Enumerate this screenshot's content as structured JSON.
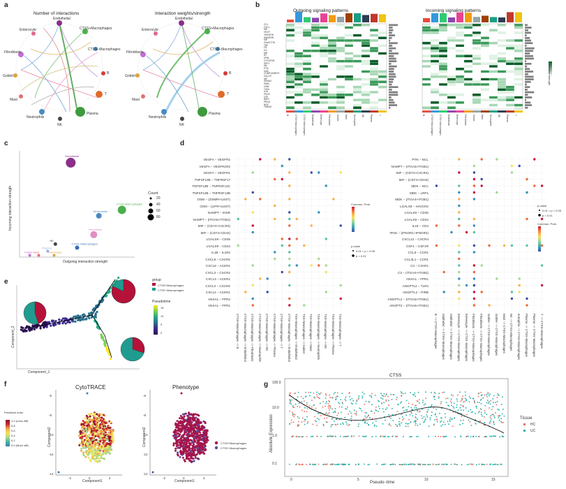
{
  "panels": {
    "a": {
      "letter": "a",
      "titles": [
        "Number of interactions",
        "Interaction weights/strength"
      ],
      "nodes": [
        "Endothelial",
        "Enterocyte",
        "CTSS+Macrophages",
        "CTSS−Macrophages",
        "Fibroblasts",
        "Goblet",
        "B",
        "Mast",
        "T",
        "Neutrophils",
        "Plasma",
        "NK"
      ]
    },
    "b": {
      "letter": "b",
      "title_out": "Outgoing signaling patterns",
      "title_in": "Incoming signaling patterns",
      "pathways": [
        "CCL",
        "CXCL",
        "MIF",
        "VEGF",
        "VISFATIN",
        "ANNEXIN",
        "MIF",
        "GALECTIN",
        "TNF",
        "FN",
        "CD",
        "MIF",
        "NT",
        "GRN",
        "CYSTATIN",
        "SPP1",
        "MK",
        "PTN",
        "GAS",
        "COMPLEMENT",
        "CALCR",
        "IGF",
        "SEMA3",
        "PARs",
        "OSM",
        "TGFb",
        "IL16",
        "PDGF",
        "CSF",
        "BAFF",
        "PROS",
        "NGF",
        "TWEAK"
      ],
      "legend_title": "Relative strength",
      "columns": [
        "B",
        "CTSS+Macrophages",
        "CTSS−Macrophages",
        "Endothelial",
        "Enterocyte",
        "Fibroblasts",
        "Goblet",
        "Mast",
        "Neutrophils",
        "NK",
        "Plasma",
        "T"
      ]
    },
    "c": {
      "letter": "c",
      "xlabel": "Outgoing interaction strength",
      "ylabel": "Incoming interaction strength",
      "legend_title": "Count",
      "legend_values": [
        "20",
        "40",
        "60",
        "80"
      ],
      "labels": [
        "Endothelial",
        "CTSS+Macrophages",
        "Neutrophils",
        "Fibroblasts",
        "NK",
        "Plasma",
        "Goblet",
        "Mast",
        "Enterocyte",
        "CTSS−Macrophages",
        "T",
        "B"
      ]
    },
    "d": {
      "letter": "d",
      "left_rows": [
        "VEGFA − VEGFR2",
        "VEGFA − VEGFR1R2",
        "VEGFA − VEGFR1",
        "TNFSF13B − TNFRSF17",
        "TNFSF13B − TNFRSF13C",
        "TNFSF13B − TNFRSF13B",
        "OSM − (OSMR+IL6ST)",
        "OSM − (LIFR+IL6ST)",
        "NAMPT − INSR",
        "NAMPT − (ITGA5+ITGB1)",
        "MIF − (CD74+CXCR4)",
        "MIF − (CD74+CD44)",
        "LGALS9 − CD45",
        "LGALS9 − CD44",
        "IL1B − IL1R2",
        "CXCL8 − CXCR2",
        "CXCL8 − ACKR1",
        "CXCL3 − CXCR2",
        "CXCL3 − ACKR1",
        "CXCL2 − CXCR2",
        "CXCL2 − ACKR1",
        "ANXA1 − FPR2",
        "ANXA1 − FPR1"
      ],
      "right_rows": [
        "PTN − NCL",
        "NAMPT − (ITGA5+ITGB1)",
        "MIF − (CD74+CXCR4)",
        "MIF − (CD74+CD44)",
        "MDK − NCL",
        "MDK − LRP1",
        "MDK − (ITGA4+ITGB1)",
        "LGALS9 − HAVCR2",
        "LGALS9 − CD45",
        "LGALS9 − CD44",
        "IL16 − CD4",
        "IFNG − (IFNGR1+IFNGR2)",
        "CXCL12 − CXCR4",
        "CSF1 − CSF1R",
        "CCL5 − CCR1",
        "CCL3L1 − CCR1",
        "C3 − C3AR1",
        "C3 − (ITGAX+ITGB2)",
        "ANXA1 − FPR1",
        "ANGPTL2 − TLR4",
        "ANGPTL2 − PIRB",
        "ANGPTL2 − (ITGA5+ITGB1)",
        "ANGPT2 − (ITGA5+ITGB1)"
      ],
      "left_cols": [
        "CTSS+Macrophages −> B",
        "CTSS+Macrophages −> Endothelial",
        "CTSS+Macrophages −> Fibroblasts",
        "CTSS+Macrophages −> Neutrophils",
        "CTSS+Macrophages −> NK",
        "CTSS+Macrophages −> Plasma",
        "CTSS+Macrophages −> T",
        "CTSS−Macrophages −> Endothelial",
        "TSS+Macrophages −> Endothelial",
        "TSS+Macrophages −> Goblet",
        "TSS+Macrophages −> Mast",
        "TSS+Macrophages −> Neutrophils",
        "TSS+Macrophages −> NK",
        "TSS+Macrophages −> Plasma",
        "TSS+Macrophages −> T"
      ],
      "right_cols": [
        "B −> CTSS+Macrophages",
        "ndothelial −> CTSS+Macrophages",
        "ndothelial −> CTSS−Macrophages",
        "Enterocyte −> CTSS+Macrophages",
        "Enterocyte −> CTSS−Macrophages",
        "Fibroblasts −> CTSS+Macrophages",
        "Fibroblasts −> CTSS−Macrophages",
        "Goblet −> CTSS+Macrophages",
        "Goblet −> CTSS−Macrophages",
        "Mast −> CTSS+Macrophages",
        "NK −> CTSS+Macrophages",
        "eutrophils −> CTSS+Macrophages",
        "Plasma −> CTSS+Macrophages",
        "Plasma −> CTSS−Macrophages",
        "T −> CTSS+Macrophages"
      ],
      "legend_prob": "Commun. Prob.",
      "legend_p": "p-value",
      "p_items": [
        "0.01 < p < 0.05",
        "p < 0.01"
      ]
    },
    "e": {
      "letter": "e",
      "xlabel": "Component_1",
      "ylabel": "Component_2",
      "group_title": "group",
      "groups": [
        "CTSS+Macrophages",
        "CTSS−Macrophages"
      ],
      "pseudo_title": "Pseudotime",
      "pseudo_ticks": [
        "0",
        "5",
        "10",
        "15"
      ]
    },
    "f": {
      "letter": "f",
      "title1": "CytoTRACE",
      "title2": "Phenotype",
      "xlabel": "Component1",
      "ylabel": "Component2",
      "x_ticks": [
        "-2",
        "0",
        "2"
      ],
      "y_ticks": [
        "-6",
        "-8",
        "-10",
        "-12",
        "-14"
      ],
      "legend_title": "Predicted order",
      "legend_ticks": [
        "1.0 (Less diff)",
        "0.8",
        "0.6",
        "0.4",
        "0.2",
        "0.0 (More diff)"
      ],
      "phenotypes": [
        "CTSS+Macrophages",
        "CTSS−Macrophages"
      ]
    },
    "g": {
      "letter": "g",
      "title": "CTSS",
      "xlabel": "Pseudo−time",
      "ylabel": "Absolute Expression",
      "x_ticks": [
        "0",
        "5",
        "10",
        "15"
      ],
      "y_ticks": [
        "100.0",
        "10.0",
        "1.0",
        "0.1"
      ],
      "legend_title": "Tissue",
      "tissues": [
        "HC",
        "UC"
      ]
    }
  },
  "colors": {
    "hc": "#e8735f",
    "uc": "#20b2aa",
    "plus": "#b5123a",
    "minus": "#5a4fa2"
  },
  "chart_data": [
    {
      "type": "scatter",
      "panel": "c",
      "xlabel": "Outgoing interaction strength",
      "ylabel": "Incoming interaction strength",
      "points": [
        {
          "label": "Endothelial",
          "x": 0.4,
          "y": 1.6
        },
        {
          "label": "CTSS+Macrophages",
          "x": 0.8,
          "y": 0.8
        },
        {
          "label": "Neutrophils",
          "x": 0.62,
          "y": 0.7
        },
        {
          "label": "Fibroblasts",
          "x": 0.58,
          "y": 0.38
        },
        {
          "label": "NK",
          "x": 0.28,
          "y": 0.22
        },
        {
          "label": "CTSS−Macrophages",
          "x": 0.45,
          "y": 0.16
        },
        {
          "label": "Plasma",
          "x": 0.22,
          "y": 0.1
        },
        {
          "label": "Goblet",
          "x": 0.08,
          "y": 0.03
        },
        {
          "label": "Mast",
          "x": 0.15,
          "y": 0.03
        },
        {
          "label": "Enterocyte",
          "x": 0.27,
          "y": 0.03
        }
      ]
    }
  ]
}
